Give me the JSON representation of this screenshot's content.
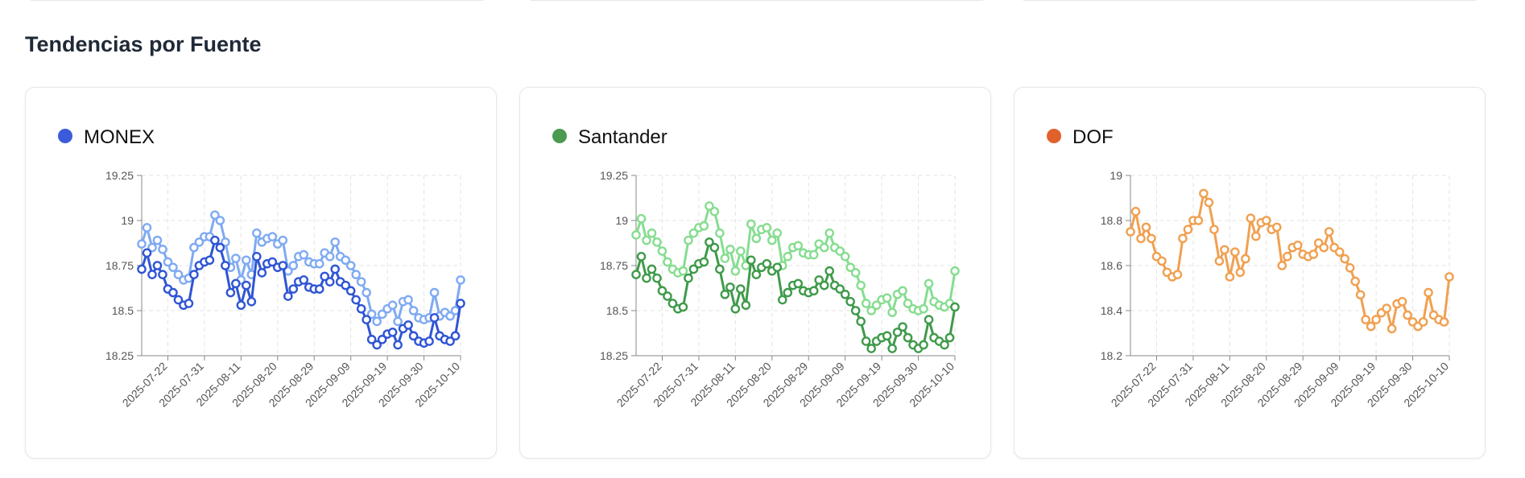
{
  "section_title": "Tendencias por Fuente",
  "chart_data": [
    {
      "type": "line",
      "title": "MONEX",
      "dot_color": "#3b5bdb",
      "categories": [
        null,
        null,
        null,
        null,
        null,
        "2025-07-22",
        null,
        null,
        null,
        null,
        null,
        null,
        "2025-07-31",
        null,
        null,
        null,
        null,
        null,
        null,
        "2025-08-11",
        null,
        null,
        null,
        null,
        null,
        null,
        "2025-08-20",
        null,
        null,
        null,
        null,
        null,
        null,
        "2025-08-29",
        null,
        null,
        null,
        null,
        null,
        null,
        "2025-09-09",
        null,
        null,
        null,
        null,
        null,
        null,
        "2025-09-19",
        null,
        null,
        null,
        null,
        null,
        null,
        "2025-09-30",
        null,
        null,
        null,
        null,
        null,
        null,
        "2025-10-10"
      ],
      "series": [
        {
          "color": "#7faaf2",
          "values": [
            18.87,
            18.96,
            18.85,
            18.89,
            18.84,
            18.77,
            18.74,
            18.7,
            18.67,
            18.68,
            18.85,
            18.88,
            18.91,
            18.91,
            19.03,
            19.0,
            18.88,
            18.74,
            18.79,
            18.67,
            18.78,
            18.7,
            18.93,
            18.88,
            18.9,
            18.91,
            18.87,
            18.89,
            18.72,
            18.75,
            18.8,
            18.81,
            18.77,
            18.76,
            18.76,
            18.82,
            18.8,
            18.88,
            18.8,
            18.78,
            18.75,
            18.7,
            18.66,
            18.6,
            18.48,
            18.44,
            18.48,
            18.51,
            18.53,
            18.44,
            18.55,
            18.56,
            18.5,
            18.46,
            18.45,
            18.46,
            18.6,
            18.47,
            18.49,
            18.47,
            18.5,
            18.67
          ]
        },
        {
          "color": "#2f55d4",
          "values": [
            18.73,
            18.82,
            18.7,
            18.75,
            18.7,
            18.62,
            18.6,
            18.56,
            18.53,
            18.54,
            18.7,
            18.75,
            18.77,
            18.78,
            18.89,
            18.85,
            18.75,
            18.6,
            18.65,
            18.53,
            18.64,
            18.55,
            18.8,
            18.71,
            18.76,
            18.77,
            18.74,
            18.75,
            18.58,
            18.62,
            18.66,
            18.67,
            18.63,
            18.62,
            18.62,
            18.69,
            18.66,
            18.73,
            18.66,
            18.64,
            18.61,
            18.56,
            18.51,
            18.45,
            18.34,
            18.31,
            18.34,
            18.37,
            18.38,
            18.31,
            18.4,
            18.42,
            18.36,
            18.33,
            18.32,
            18.33,
            18.46,
            18.36,
            18.34,
            18.33,
            18.36,
            18.54
          ]
        }
      ],
      "ylim": [
        18.25,
        19.25
      ],
      "yticks": [
        19.25,
        19,
        18.75,
        18.5,
        18.25
      ],
      "grid": true
    },
    {
      "type": "line",
      "title": "Santander",
      "dot_color": "#4a9a50",
      "categories": [
        null,
        null,
        null,
        null,
        null,
        "2025-07-22",
        null,
        null,
        null,
        null,
        null,
        null,
        "2025-07-31",
        null,
        null,
        null,
        null,
        null,
        null,
        "2025-08-11",
        null,
        null,
        null,
        null,
        null,
        null,
        "2025-08-20",
        null,
        null,
        null,
        null,
        null,
        null,
        "2025-08-29",
        null,
        null,
        null,
        null,
        null,
        null,
        "2025-09-09",
        null,
        null,
        null,
        null,
        null,
        null,
        "2025-09-19",
        null,
        null,
        null,
        null,
        null,
        null,
        "2025-09-30",
        null,
        null,
        null,
        null,
        null,
        null,
        "2025-10-10"
      ],
      "series": [
        {
          "color": "#86dd90",
          "values": [
            18.92,
            19.01,
            18.89,
            18.93,
            18.88,
            18.83,
            18.77,
            18.73,
            18.71,
            18.72,
            18.89,
            18.93,
            18.96,
            18.97,
            19.08,
            19.05,
            18.93,
            18.79,
            18.84,
            18.72,
            18.83,
            18.75,
            18.98,
            18.9,
            18.95,
            18.96,
            18.89,
            18.93,
            18.75,
            18.8,
            18.85,
            18.86,
            18.82,
            18.81,
            18.81,
            18.87,
            18.85,
            18.93,
            18.85,
            18.83,
            18.8,
            18.74,
            18.71,
            18.64,
            18.54,
            18.5,
            18.53,
            18.56,
            18.57,
            18.49,
            18.59,
            18.61,
            18.54,
            18.51,
            18.5,
            18.51,
            18.65,
            18.55,
            18.53,
            18.52,
            18.54,
            18.72
          ]
        },
        {
          "color": "#3f9a4a",
          "values": [
            18.7,
            18.8,
            18.68,
            18.73,
            18.68,
            18.61,
            18.58,
            18.54,
            18.51,
            18.52,
            18.68,
            18.73,
            18.76,
            18.77,
            18.88,
            18.85,
            18.73,
            18.59,
            18.63,
            18.51,
            18.62,
            18.53,
            18.78,
            18.7,
            18.74,
            18.76,
            18.72,
            18.74,
            18.56,
            18.6,
            18.64,
            18.65,
            18.61,
            18.6,
            18.61,
            18.67,
            18.64,
            18.72,
            18.64,
            18.62,
            18.59,
            18.55,
            18.5,
            18.44,
            18.33,
            18.29,
            18.33,
            18.35,
            18.36,
            18.29,
            18.38,
            18.41,
            18.35,
            18.31,
            18.29,
            18.31,
            18.45,
            18.35,
            18.33,
            18.31,
            18.35,
            18.52
          ]
        }
      ],
      "ylim": [
        18.25,
        19.25
      ],
      "yticks": [
        19.25,
        19,
        18.75,
        18.5,
        18.25
      ],
      "grid": true
    },
    {
      "type": "line",
      "title": "DOF",
      "dot_color": "#e0622a",
      "categories": [
        null,
        null,
        null,
        null,
        null,
        "2025-07-22",
        null,
        null,
        null,
        null,
        null,
        null,
        "2025-07-31",
        null,
        null,
        null,
        null,
        null,
        null,
        "2025-08-11",
        null,
        null,
        null,
        null,
        null,
        null,
        "2025-08-20",
        null,
        null,
        null,
        null,
        null,
        null,
        "2025-08-29",
        null,
        null,
        null,
        null,
        null,
        null,
        "2025-09-09",
        null,
        null,
        null,
        null,
        null,
        null,
        "2025-09-19",
        null,
        null,
        null,
        null,
        null,
        null,
        "2025-09-30",
        null,
        null,
        null,
        null,
        null,
        null,
        "2025-10-10"
      ],
      "series": [
        {
          "color": "#f0a050",
          "values": [
            18.75,
            18.84,
            18.72,
            18.77,
            18.72,
            18.64,
            18.62,
            18.57,
            18.55,
            18.56,
            18.72,
            18.76,
            18.8,
            18.8,
            18.92,
            18.88,
            18.76,
            18.62,
            18.67,
            18.55,
            18.66,
            18.57,
            18.63,
            18.81,
            18.73,
            18.79,
            18.8,
            18.76,
            18.77,
            18.6,
            18.64,
            18.68,
            18.69,
            18.65,
            18.64,
            18.65,
            18.7,
            18.68,
            18.75,
            18.68,
            18.66,
            18.63,
            18.59,
            18.53,
            18.47,
            18.36,
            18.33,
            18.36,
            18.39,
            18.41,
            18.32,
            18.43,
            18.44,
            18.38,
            18.35,
            18.33,
            18.35,
            18.48,
            18.38,
            18.36,
            18.35,
            18.55
          ]
        }
      ],
      "ylim": [
        18.2,
        19
      ],
      "yticks": [
        19,
        18.8,
        18.6,
        18.4,
        18.2
      ],
      "grid": true
    }
  ]
}
